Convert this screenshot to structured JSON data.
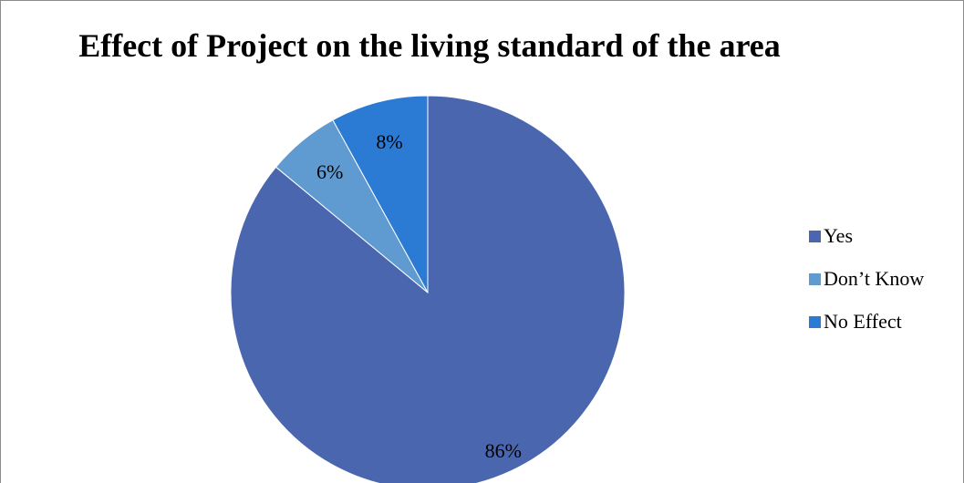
{
  "chart_data": {
    "type": "pie",
    "title": "Effect of Project on the living standard of the area",
    "slices": [
      {
        "label": "Yes",
        "value": 86,
        "display": "86%",
        "color": "#4a66ae"
      },
      {
        "label": "Don’t Know",
        "value": 6,
        "display": "6%",
        "color": "#5f9bd1"
      },
      {
        "label": "No Effect",
        "value": 8,
        "display": "8%",
        "color": "#2b7bd4"
      }
    ],
    "legend_position": "right"
  }
}
